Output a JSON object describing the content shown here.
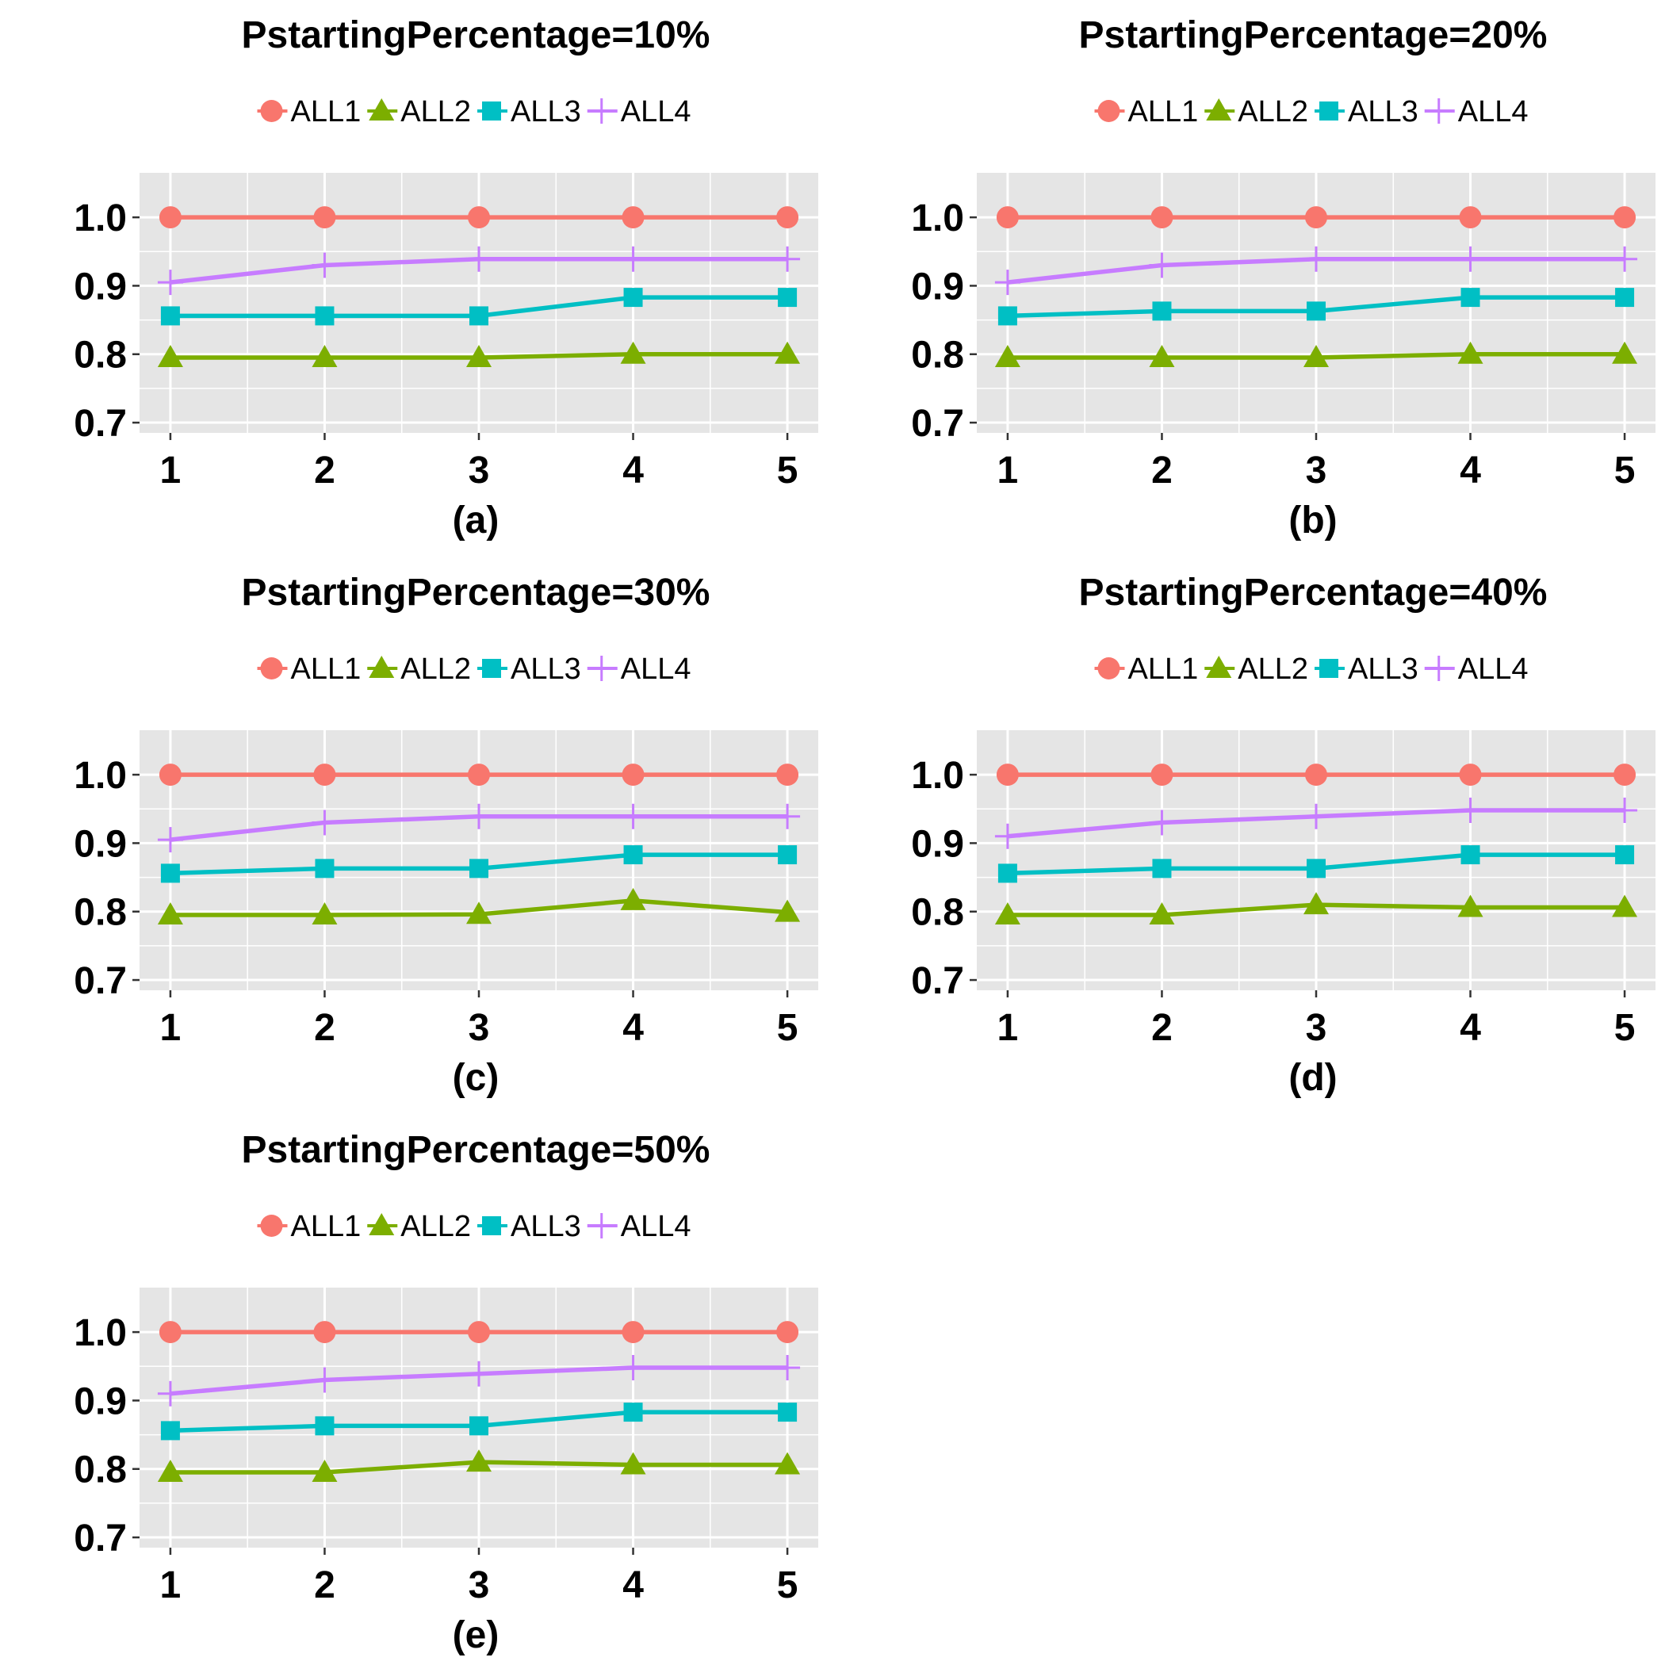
{
  "colors": {
    "ALL1": "#F8766D",
    "ALL2": "#7CAE00",
    "ALL3": "#00BFC4",
    "ALL4": "#C77CFF",
    "panel_bg": "#E5E5E5",
    "grid": "#FFFFFF"
  },
  "chart_data": [
    {
      "type": "line",
      "title": "PstartingPercentage=10%",
      "xlabel": "(a)",
      "ylabel": "",
      "x": [
        1,
        2,
        3,
        4,
        5
      ],
      "xlim": [
        0.8,
        5.2
      ],
      "ylim": [
        0.685,
        1.065
      ],
      "yticks": [
        0.7,
        0.8,
        0.9,
        1.0
      ],
      "ytick_labels": [
        "0.7",
        "0.8",
        "0.9",
        "1.0"
      ],
      "xtick_labels": [
        "1",
        "2",
        "3",
        "4",
        "5"
      ],
      "legend": "top",
      "grid": true,
      "series": [
        {
          "name": "ALL1",
          "marker": "circle",
          "values": [
            1.0,
            1.0,
            1.0,
            1.0,
            1.0
          ]
        },
        {
          "name": "ALL2",
          "marker": "triangle",
          "values": [
            0.795,
            0.795,
            0.795,
            0.8,
            0.8
          ]
        },
        {
          "name": "ALL3",
          "marker": "square",
          "values": [
            0.856,
            0.856,
            0.856,
            0.883,
            0.883
          ]
        },
        {
          "name": "ALL4",
          "marker": "plus",
          "values": [
            0.905,
            0.93,
            0.939,
            0.939,
            0.939
          ]
        }
      ]
    },
    {
      "type": "line",
      "title": "PstartingPercentage=20%",
      "xlabel": "(b)",
      "ylabel": "",
      "x": [
        1,
        2,
        3,
        4,
        5
      ],
      "xlim": [
        0.8,
        5.2
      ],
      "ylim": [
        0.685,
        1.065
      ],
      "yticks": [
        0.7,
        0.8,
        0.9,
        1.0
      ],
      "ytick_labels": [
        "0.7",
        "0.8",
        "0.9",
        "1.0"
      ],
      "xtick_labels": [
        "1",
        "2",
        "3",
        "4",
        "5"
      ],
      "legend": "top",
      "grid": true,
      "series": [
        {
          "name": "ALL1",
          "marker": "circle",
          "values": [
            1.0,
            1.0,
            1.0,
            1.0,
            1.0
          ]
        },
        {
          "name": "ALL2",
          "marker": "triangle",
          "values": [
            0.795,
            0.795,
            0.795,
            0.8,
            0.8
          ]
        },
        {
          "name": "ALL3",
          "marker": "square",
          "values": [
            0.856,
            0.863,
            0.863,
            0.883,
            0.883
          ]
        },
        {
          "name": "ALL4",
          "marker": "plus",
          "values": [
            0.905,
            0.93,
            0.939,
            0.939,
            0.939
          ]
        }
      ]
    },
    {
      "type": "line",
      "title": "PstartingPercentage=30%",
      "xlabel": "(c)",
      "ylabel": "",
      "x": [
        1,
        2,
        3,
        4,
        5
      ],
      "xlim": [
        0.8,
        5.2
      ],
      "ylim": [
        0.685,
        1.065
      ],
      "yticks": [
        0.7,
        0.8,
        0.9,
        1.0
      ],
      "ytick_labels": [
        "0.7",
        "0.8",
        "0.9",
        "1.0"
      ],
      "xtick_labels": [
        "1",
        "2",
        "3",
        "4",
        "5"
      ],
      "legend": "top",
      "grid": true,
      "series": [
        {
          "name": "ALL1",
          "marker": "circle",
          "values": [
            1.0,
            1.0,
            1.0,
            1.0,
            1.0
          ]
        },
        {
          "name": "ALL2",
          "marker": "triangle",
          "values": [
            0.795,
            0.795,
            0.796,
            0.816,
            0.799
          ]
        },
        {
          "name": "ALL3",
          "marker": "square",
          "values": [
            0.856,
            0.863,
            0.863,
            0.883,
            0.883
          ]
        },
        {
          "name": "ALL4",
          "marker": "plus",
          "values": [
            0.905,
            0.93,
            0.939,
            0.939,
            0.939
          ]
        }
      ]
    },
    {
      "type": "line",
      "title": "PstartingPercentage=40%",
      "xlabel": "(d)",
      "ylabel": "",
      "x": [
        1,
        2,
        3,
        4,
        5
      ],
      "xlim": [
        0.8,
        5.2
      ],
      "ylim": [
        0.685,
        1.065
      ],
      "yticks": [
        0.7,
        0.8,
        0.9,
        1.0
      ],
      "ytick_labels": [
        "0.7",
        "0.8",
        "0.9",
        "1.0"
      ],
      "xtick_labels": [
        "1",
        "2",
        "3",
        "4",
        "5"
      ],
      "legend": "top",
      "grid": true,
      "series": [
        {
          "name": "ALL1",
          "marker": "circle",
          "values": [
            1.0,
            1.0,
            1.0,
            1.0,
            1.0
          ]
        },
        {
          "name": "ALL2",
          "marker": "triangle",
          "values": [
            0.795,
            0.795,
            0.81,
            0.806,
            0.806
          ]
        },
        {
          "name": "ALL3",
          "marker": "square",
          "values": [
            0.856,
            0.863,
            0.863,
            0.883,
            0.883
          ]
        },
        {
          "name": "ALL4",
          "marker": "plus",
          "values": [
            0.91,
            0.93,
            0.939,
            0.948,
            0.948
          ]
        }
      ]
    },
    {
      "type": "line",
      "title": "PstartingPercentage=50%",
      "xlabel": "(e)",
      "ylabel": "",
      "x": [
        1,
        2,
        3,
        4,
        5
      ],
      "xlim": [
        0.8,
        5.2
      ],
      "ylim": [
        0.685,
        1.065
      ],
      "yticks": [
        0.7,
        0.8,
        0.9,
        1.0
      ],
      "ytick_labels": [
        "0.7",
        "0.8",
        "0.9",
        "1.0"
      ],
      "xtick_labels": [
        "1",
        "2",
        "3",
        "4",
        "5"
      ],
      "legend": "top",
      "grid": true,
      "series": [
        {
          "name": "ALL1",
          "marker": "circle",
          "values": [
            1.0,
            1.0,
            1.0,
            1.0,
            1.0
          ]
        },
        {
          "name": "ALL2",
          "marker": "triangle",
          "values": [
            0.795,
            0.795,
            0.81,
            0.806,
            0.806
          ]
        },
        {
          "name": "ALL3",
          "marker": "square",
          "values": [
            0.856,
            0.863,
            0.863,
            0.883,
            0.883
          ]
        },
        {
          "name": "ALL4",
          "marker": "plus",
          "values": [
            0.91,
            0.93,
            0.939,
            0.948,
            0.948
          ]
        }
      ]
    }
  ]
}
